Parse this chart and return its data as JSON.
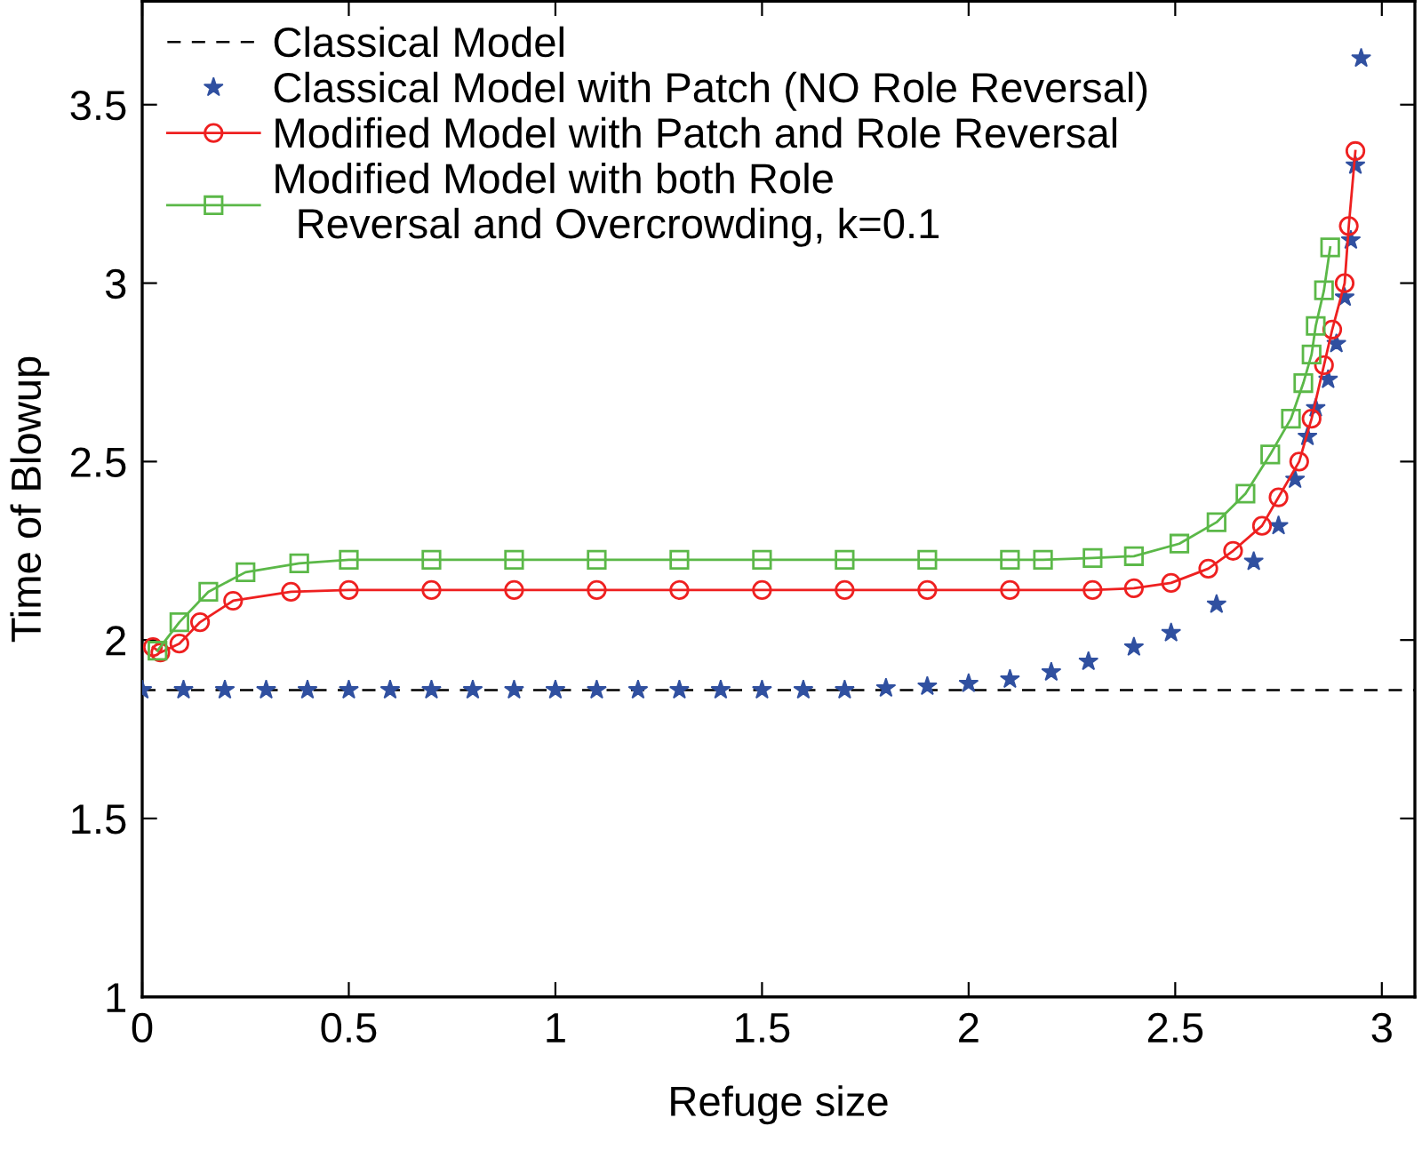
{
  "chart_data": {
    "type": "line",
    "xlabel": "Refuge size",
    "ylabel": "Time of Blowup",
    "xlim": [
      0,
      3.08
    ],
    "ylim": [
      1,
      3.79
    ],
    "xticks": [
      0,
      0.5,
      1,
      1.5,
      2,
      2.5,
      3
    ],
    "yticks": [
      1,
      1.5,
      2,
      2.5,
      3,
      3.5
    ],
    "grid": false,
    "legend": "top left",
    "series": [
      {
        "name": "Classical Model",
        "type": "line",
        "color": "#000000",
        "line_style": "dashed",
        "marker": "none",
        "x": [
          0,
          3.08
        ],
        "values": [
          1.86,
          1.86
        ]
      },
      {
        "name": "Classical Model with Patch (NO Role Reversal)",
        "type": "scatter",
        "color": "#3050a0",
        "marker": "star",
        "x": [
          0,
          0.1,
          0.2,
          0.3,
          0.4,
          0.5,
          0.6,
          0.7,
          0.8,
          0.9,
          1.0,
          1.1,
          1.2,
          1.3,
          1.4,
          1.5,
          1.6,
          1.7,
          1.8,
          1.9,
          2.0,
          2.1,
          2.2,
          2.29,
          2.4,
          2.49,
          2.6,
          2.69,
          2.75,
          2.79,
          2.82,
          2.84,
          2.87,
          2.89,
          2.91,
          2.925,
          2.936,
          2.95
        ],
        "values": [
          1.86,
          1.86,
          1.86,
          1.86,
          1.86,
          1.86,
          1.86,
          1.86,
          1.86,
          1.86,
          1.86,
          1.86,
          1.86,
          1.86,
          1.86,
          1.86,
          1.86,
          1.86,
          1.865,
          1.87,
          1.878,
          1.89,
          1.91,
          1.94,
          1.98,
          2.02,
          2.1,
          2.22,
          2.32,
          2.45,
          2.57,
          2.65,
          2.73,
          2.83,
          2.96,
          3.12,
          3.33,
          3.63
        ]
      },
      {
        "name": "Modified Model with Patch and Role Reversal",
        "color": "#ee2020",
        "marker": "circle",
        "line_style": "solid",
        "x": [
          0.026,
          0.044,
          0.09,
          0.14,
          0.22,
          0.36,
          0.5,
          0.7,
          0.9,
          1.1,
          1.3,
          1.5,
          1.7,
          1.9,
          2.1,
          2.3,
          2.4,
          2.49,
          2.58,
          2.64,
          2.71,
          2.75,
          2.8,
          2.83,
          2.86,
          2.88,
          2.91,
          2.92,
          2.936
        ],
        "values": [
          1.98,
          1.965,
          1.99,
          2.05,
          2.11,
          2.135,
          2.14,
          2.14,
          2.14,
          2.14,
          2.14,
          2.14,
          2.14,
          2.14,
          2.14,
          2.14,
          2.145,
          2.16,
          2.2,
          2.25,
          2.32,
          2.4,
          2.5,
          2.62,
          2.77,
          2.87,
          3.0,
          3.16,
          3.37
        ]
      },
      {
        "name": "Modified Model with both Role\n  Reversal and Overcrowding, k=0.1",
        "color": "#5bb848",
        "marker": "square",
        "line_style": "solid",
        "x": [
          0.037,
          0.09,
          0.16,
          0.25,
          0.38,
          0.5,
          0.7,
          0.9,
          1.1,
          1.3,
          1.5,
          1.7,
          1.9,
          2.1,
          2.18,
          2.3,
          2.4,
          2.51,
          2.6,
          2.67,
          2.73,
          2.78,
          2.81,
          2.83,
          2.84,
          2.86,
          2.875
        ],
        "values": [
          1.97,
          2.05,
          2.135,
          2.19,
          2.215,
          2.225,
          2.225,
          2.225,
          2.225,
          2.225,
          2.225,
          2.225,
          2.225,
          2.225,
          2.225,
          2.23,
          2.235,
          2.27,
          2.33,
          2.41,
          2.52,
          2.62,
          2.72,
          2.8,
          2.88,
          2.98,
          3.1
        ]
      }
    ]
  }
}
